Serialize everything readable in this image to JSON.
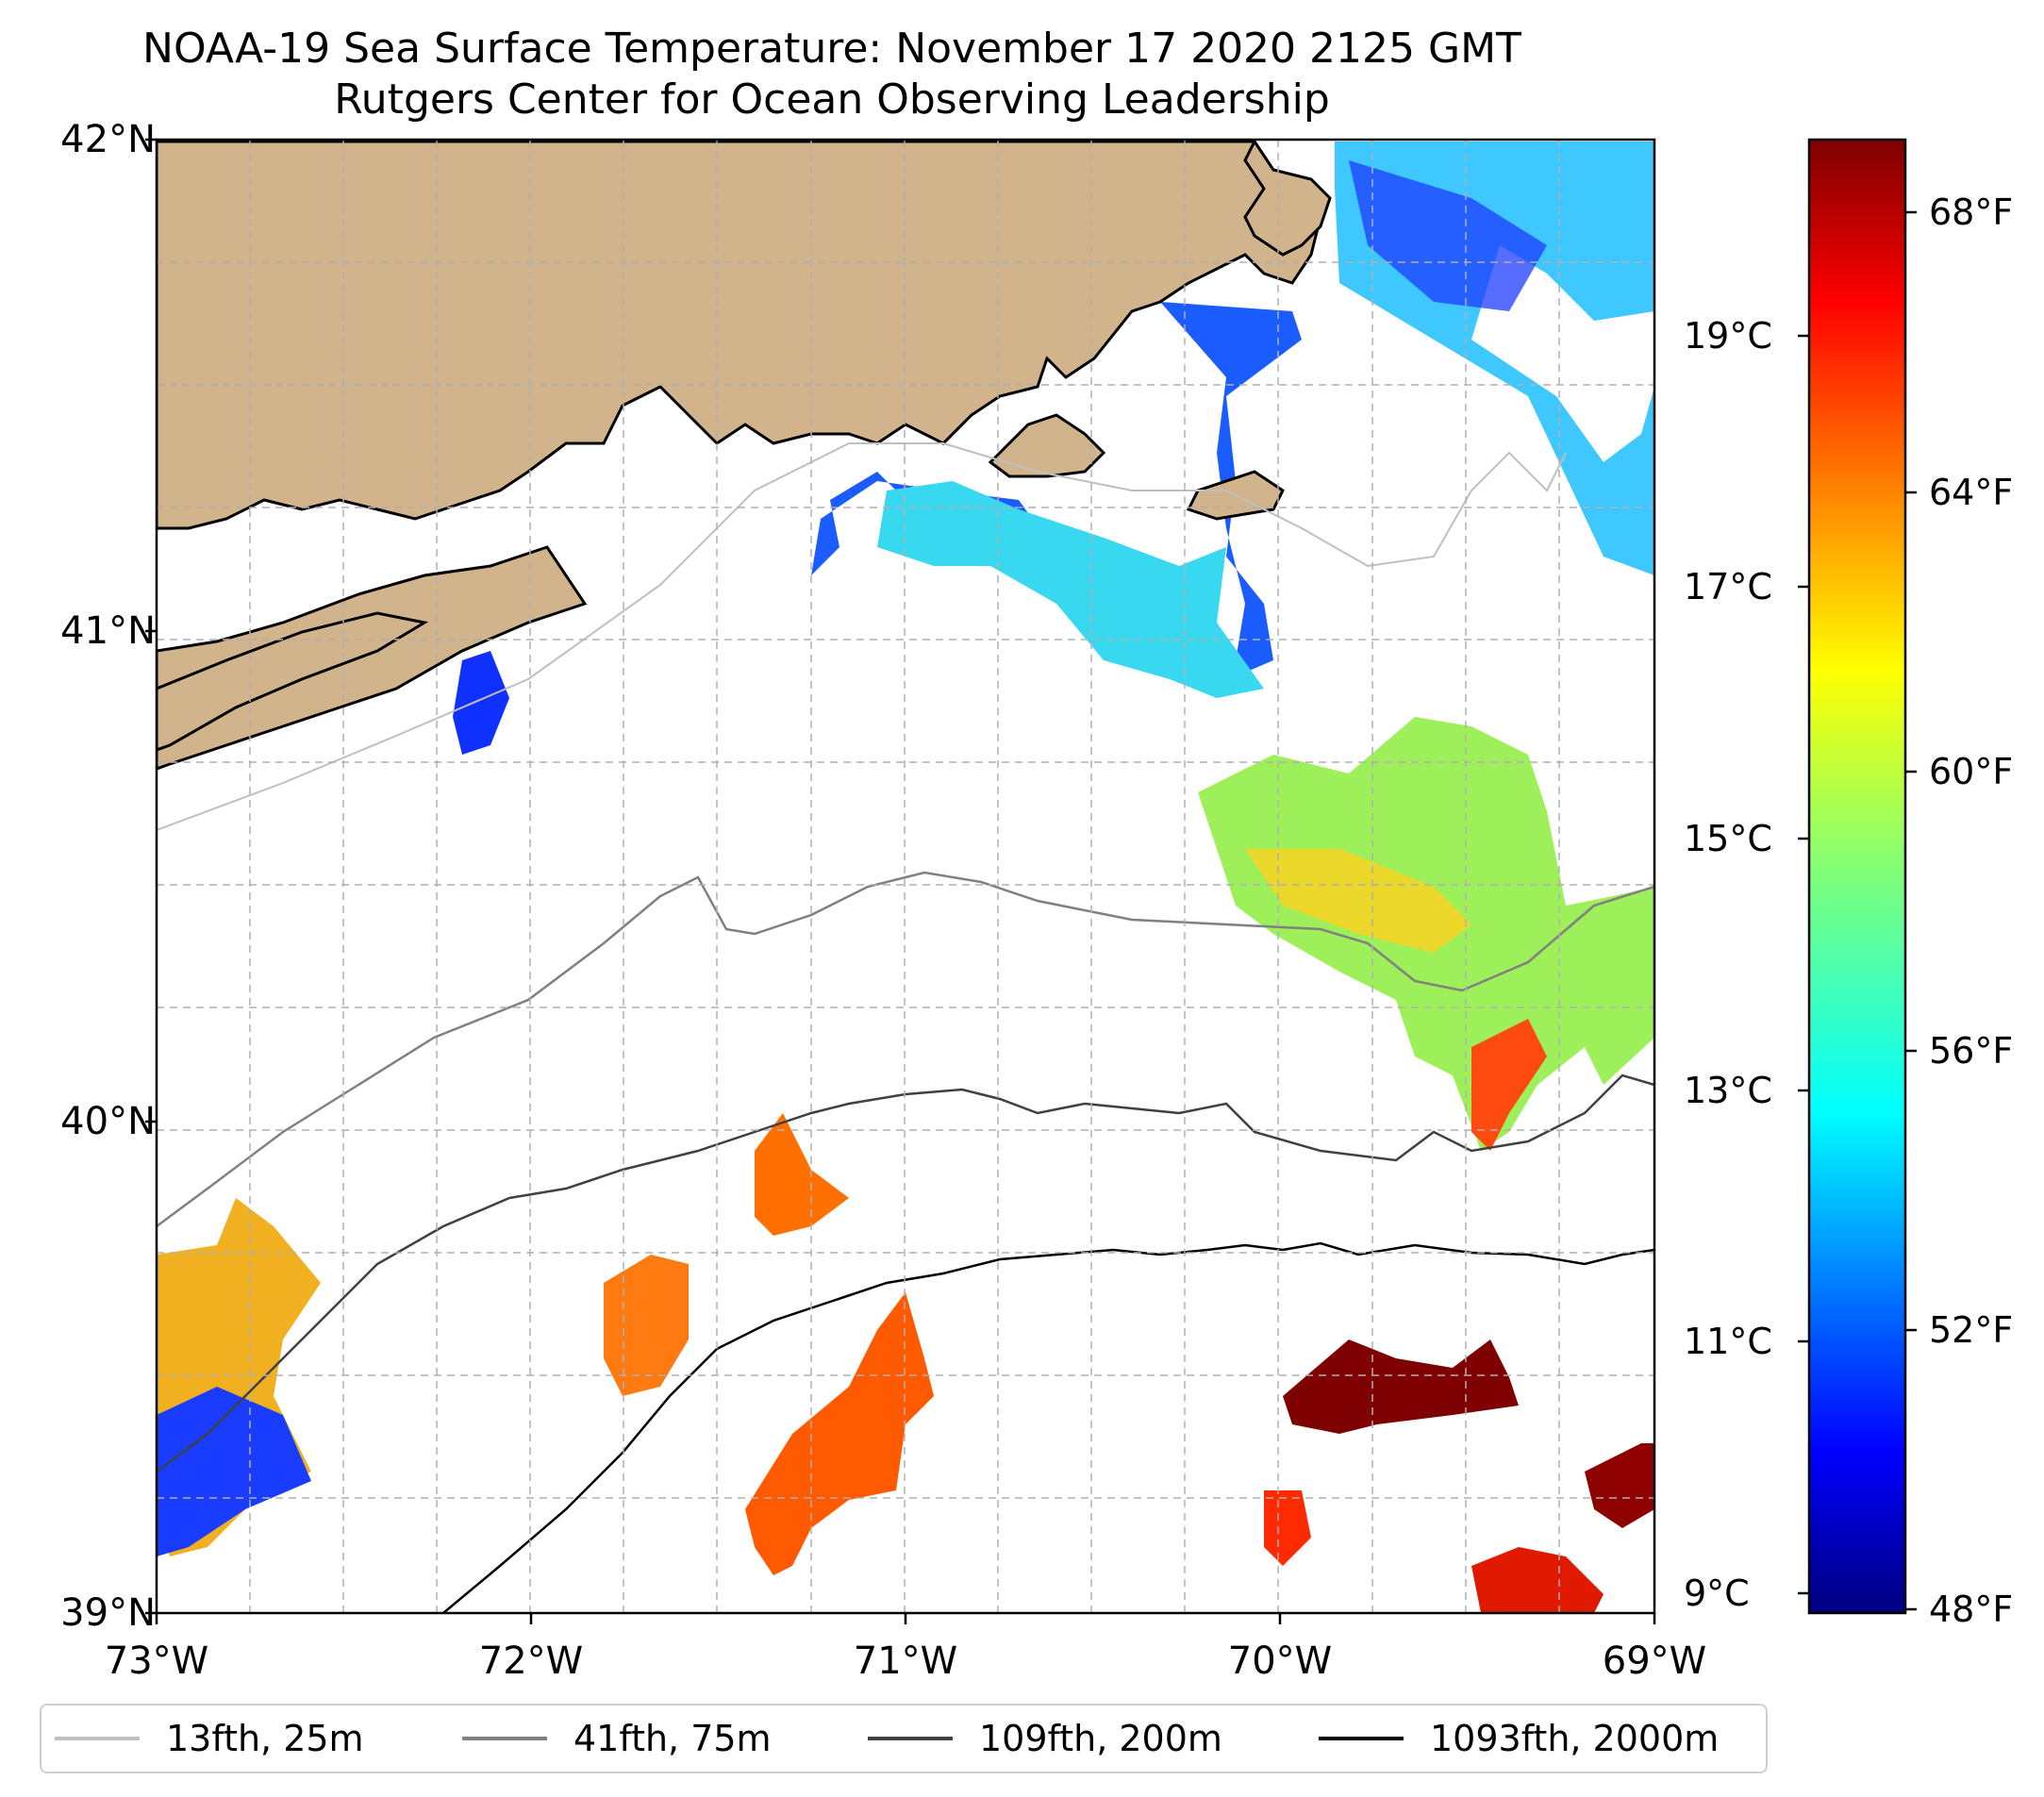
{
  "title": "NOAA-19 Sea Surface Temperature: November 17 2020 2125 GMT",
  "subtitle": "Rutgers Center for Ocean Observing Leadership",
  "map": {
    "extent": {
      "lon": [
        -73,
        -69
      ],
      "lat": [
        39,
        42
      ]
    },
    "land_color": "#d2b48c",
    "gridlines": "dashed",
    "x_ticks": [
      "73°W",
      "72°W",
      "71°W",
      "70°W",
      "69°W"
    ],
    "y_ticks": [
      "42°N",
      "41°N",
      "40°N",
      "39°N"
    ],
    "colormap": "jet"
  },
  "colorbar": {
    "celsius_ticks": [
      "19°C",
      "17°C",
      "15°C",
      "13°C",
      "11°C",
      "9°C"
    ],
    "fahrenheit_ticks": [
      "68°F",
      "64°F",
      "60°F",
      "56°F",
      "52°F",
      "48°F"
    ],
    "range_f": [
      48,
      70
    ]
  },
  "legend": [
    {
      "label": "13fth, 25m",
      "color": "#bfbfbf"
    },
    {
      "label": "41fth, 75m",
      "color": "#808080"
    },
    {
      "label": "109fth, 200m",
      "color": "#404040"
    },
    {
      "label": "1093fth, 2000m",
      "color": "#000000"
    }
  ]
}
